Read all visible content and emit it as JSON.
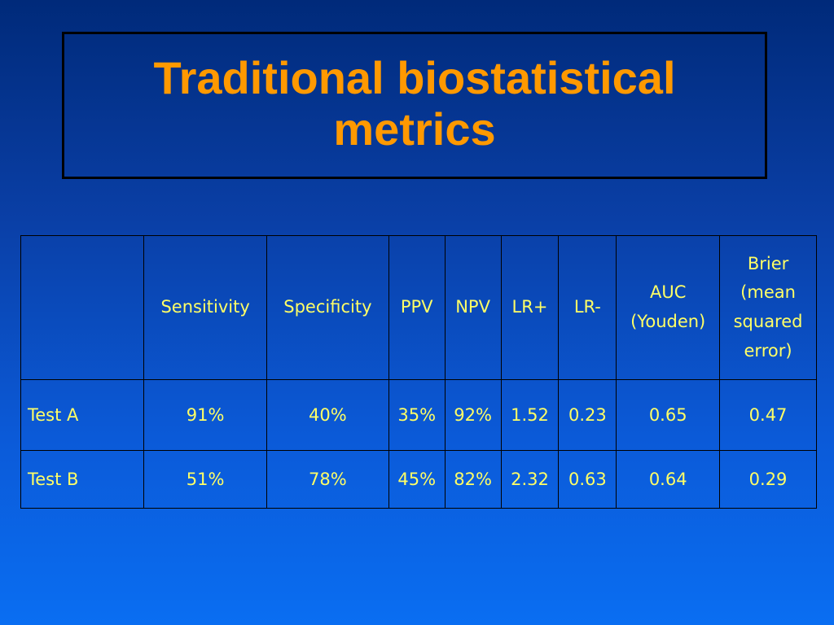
{
  "slide": {
    "title": "Traditional biostatistical metrics"
  },
  "table": {
    "headers": {
      "blank": "",
      "sensitivity": "Sensitivity",
      "specificity": "Specificity",
      "ppv": "PPV",
      "npv": "NPV",
      "lr_pos": "LR+",
      "lr_neg": "LR-",
      "auc_line1": "AUC",
      "auc_line2": "(Youden)",
      "brier_line1": "Brier",
      "brier_line2": "(mean",
      "brier_line3": "squared",
      "brier_line4": "error)"
    },
    "rows": [
      {
        "label": "Test A",
        "sensitivity": "91%",
        "specificity": "40%",
        "ppv": "35%",
        "npv": "92%",
        "lr_pos": "1.52",
        "lr_neg": "0.23",
        "auc": "0.65",
        "brier": "0.47"
      },
      {
        "label": "Test B",
        "sensitivity": "51%",
        "specificity": "78%",
        "ppv": "45%",
        "npv": "82%",
        "lr_pos": "2.32",
        "lr_neg": "0.63",
        "auc": "0.64",
        "brier": "0.29"
      }
    ]
  },
  "colors": {
    "title": "#ff9900",
    "table_text": "#ffff66",
    "background_top": "#002a7a",
    "background_bottom": "#0a6ef2",
    "border": "#000000"
  }
}
